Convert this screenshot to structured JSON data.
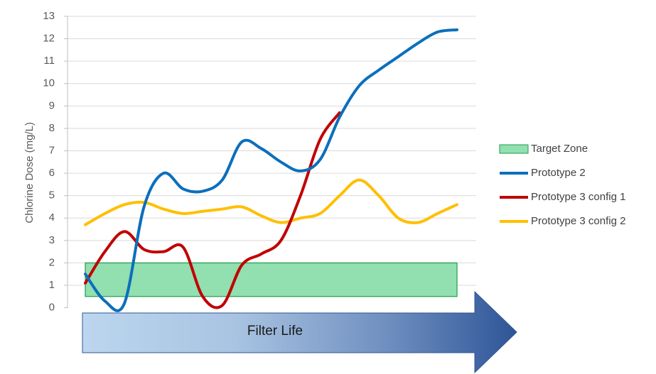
{
  "chart_data": {
    "type": "line",
    "ylabel": "Chlorine Dose (mg/L)",
    "xlabel": "Filter Life",
    "ylim": [
      0,
      13
    ],
    "yticks": [
      0,
      1,
      2,
      3,
      4,
      5,
      6,
      7,
      8,
      9,
      10,
      11,
      12,
      13
    ],
    "grid": true,
    "legend_position": "right",
    "target_zone": {
      "name": "Target Zone",
      "y_min": 0.5,
      "y_max": 2.0,
      "x_min": 0,
      "x_max": 19,
      "color": "#92dfb0",
      "edge_color": "#1e9e4a"
    },
    "series": [
      {
        "name": "Prototype 2",
        "color": "#0b6fbc",
        "x": [
          0,
          1,
          2,
          3,
          4,
          5,
          6,
          7,
          8,
          9,
          10,
          11,
          12,
          13,
          14,
          15,
          16,
          17,
          18,
          19
        ],
        "values": [
          1.5,
          0.3,
          0.2,
          4.5,
          6.0,
          5.3,
          5.2,
          5.7,
          7.4,
          7.1,
          6.5,
          6.1,
          6.6,
          8.5,
          9.9,
          10.6,
          11.2,
          11.8,
          12.3,
          12.4
        ]
      },
      {
        "name": "Prototype 3 config 1",
        "color": "#c00000",
        "x": [
          0,
          1,
          2,
          3,
          4,
          5,
          6,
          7,
          8,
          9,
          10,
          11,
          12,
          13
        ],
        "values": [
          1.1,
          2.5,
          3.4,
          2.6,
          2.5,
          2.7,
          0.5,
          0.1,
          1.9,
          2.4,
          3.0,
          5.0,
          7.5,
          8.7
        ]
      },
      {
        "name": "Prototype 3 config 2",
        "color": "#ffbf00",
        "x": [
          0,
          1,
          2,
          3,
          4,
          5,
          6,
          7,
          8,
          9,
          10,
          11,
          12,
          13,
          14,
          15,
          16,
          17,
          18,
          19
        ],
        "values": [
          3.7,
          4.2,
          4.6,
          4.7,
          4.4,
          4.2,
          4.3,
          4.4,
          4.5,
          4.1,
          3.8,
          4.0,
          4.2,
          5.0,
          5.7,
          5.0,
          4.0,
          3.8,
          4.2,
          4.6
        ]
      }
    ]
  }
}
